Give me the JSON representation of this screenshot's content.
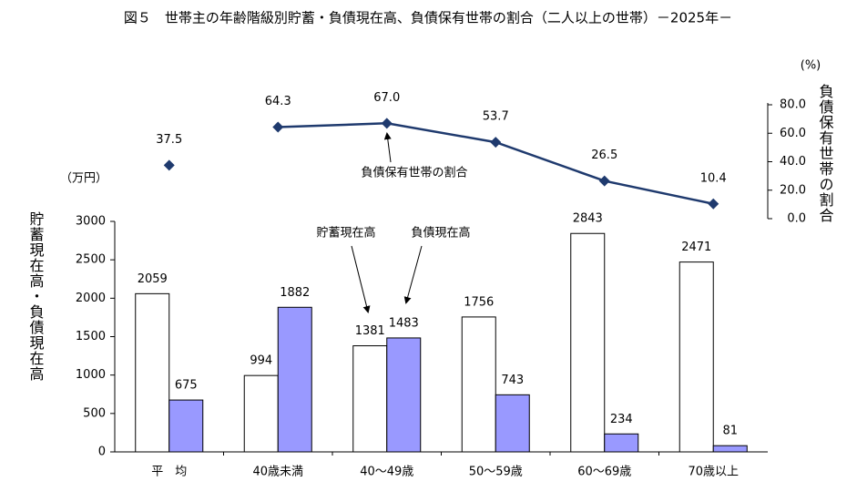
{
  "chart_data": {
    "type": "bar",
    "title": "図５　世帯主の年齢階級別貯蓄・負債現在高、負債保有世帯の割合（二人以上の世帯）－2025年－",
    "categories": [
      "平　均",
      "40歳未満",
      "40～49歳",
      "50～59歳",
      "60～69歳",
      "70歳以上"
    ],
    "series": [
      {
        "name": "貯蓄現在高",
        "color": "#ffffff",
        "values": [
          2059,
          994,
          1381,
          1756,
          2843,
          2471
        ]
      },
      {
        "name": "負債現在高",
        "color": "#9999ff",
        "values": [
          675,
          1882,
          1483,
          743,
          234,
          81
        ]
      },
      {
        "name": "負債保有世帯の割合",
        "type": "line",
        "axis": "y2",
        "color": "#1f3a6e",
        "values": [
          37.5,
          64.3,
          67.0,
          53.7,
          26.5,
          10.4
        ],
        "value_labels": [
          "37.5",
          "64.3",
          "67.0",
          "53.7",
          "26.5",
          "10.4"
        ]
      }
    ],
    "ylabel": "貯蓄現在高・負債現在高",
    "y_unit": "（万円）",
    "y2label": "負債保有世帯の割合",
    "y2_unit": "(%)",
    "ylim": [
      0,
      3000
    ],
    "yticks": [
      0,
      500,
      1000,
      1500,
      2000,
      2500,
      3000
    ],
    "y2lim": [
      0,
      80
    ],
    "y2ticks": [
      {
        "value": 0,
        "label": "0.0"
      },
      {
        "value": 20,
        "label": "20.0"
      },
      {
        "value": 40,
        "label": "40.0"
      },
      {
        "value": 60,
        "label": "60.0"
      },
      {
        "value": 80,
        "label": "80.0"
      }
    ]
  }
}
